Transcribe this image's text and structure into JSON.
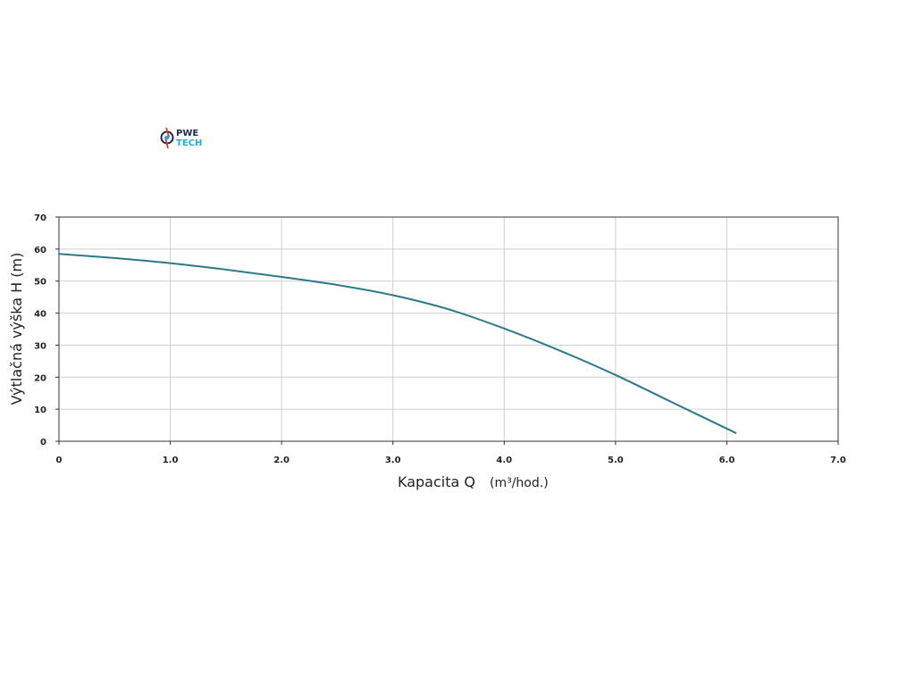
{
  "logo": {
    "line1": "PWE",
    "line2": "TECH",
    "color_dark": "#1b2b4a",
    "color_accent": "#27a9e1",
    "color_red": "#e23b2e"
  },
  "chart_data": {
    "type": "line",
    "title": "",
    "xlabel": "Kapacita Q",
    "xlabel_unit": "(m³/hod.)",
    "ylabel": "Výtlačná výška H (m)",
    "xlim": [
      0,
      7
    ],
    "ylim": [
      0,
      70
    ],
    "x_ticks": [
      0,
      1,
      2,
      3,
      4,
      5,
      6,
      7
    ],
    "x_tick_labels": [
      "0",
      "1.0",
      "2.0",
      "3.0",
      "4.0",
      "5.0",
      "6.0",
      "7.0"
    ],
    "y_ticks": [
      0,
      10,
      20,
      30,
      40,
      50,
      60,
      70
    ],
    "y_tick_labels": [
      "0",
      "10",
      "20",
      "30",
      "40",
      "50",
      "60",
      "70"
    ],
    "grid": true,
    "series": [
      {
        "color": "#2a7a8a",
        "x": [
          0,
          0.5,
          1.0,
          1.5,
          2.0,
          2.5,
          3.0,
          3.5,
          4.0,
          4.5,
          5.0,
          5.5,
          6.08
        ],
        "y": [
          58.5,
          57.2,
          55.6,
          53.6,
          51.3,
          48.8,
          45.6,
          41.2,
          35.2,
          28.3,
          20.7,
          12.3,
          2.6
        ]
      }
    ]
  }
}
